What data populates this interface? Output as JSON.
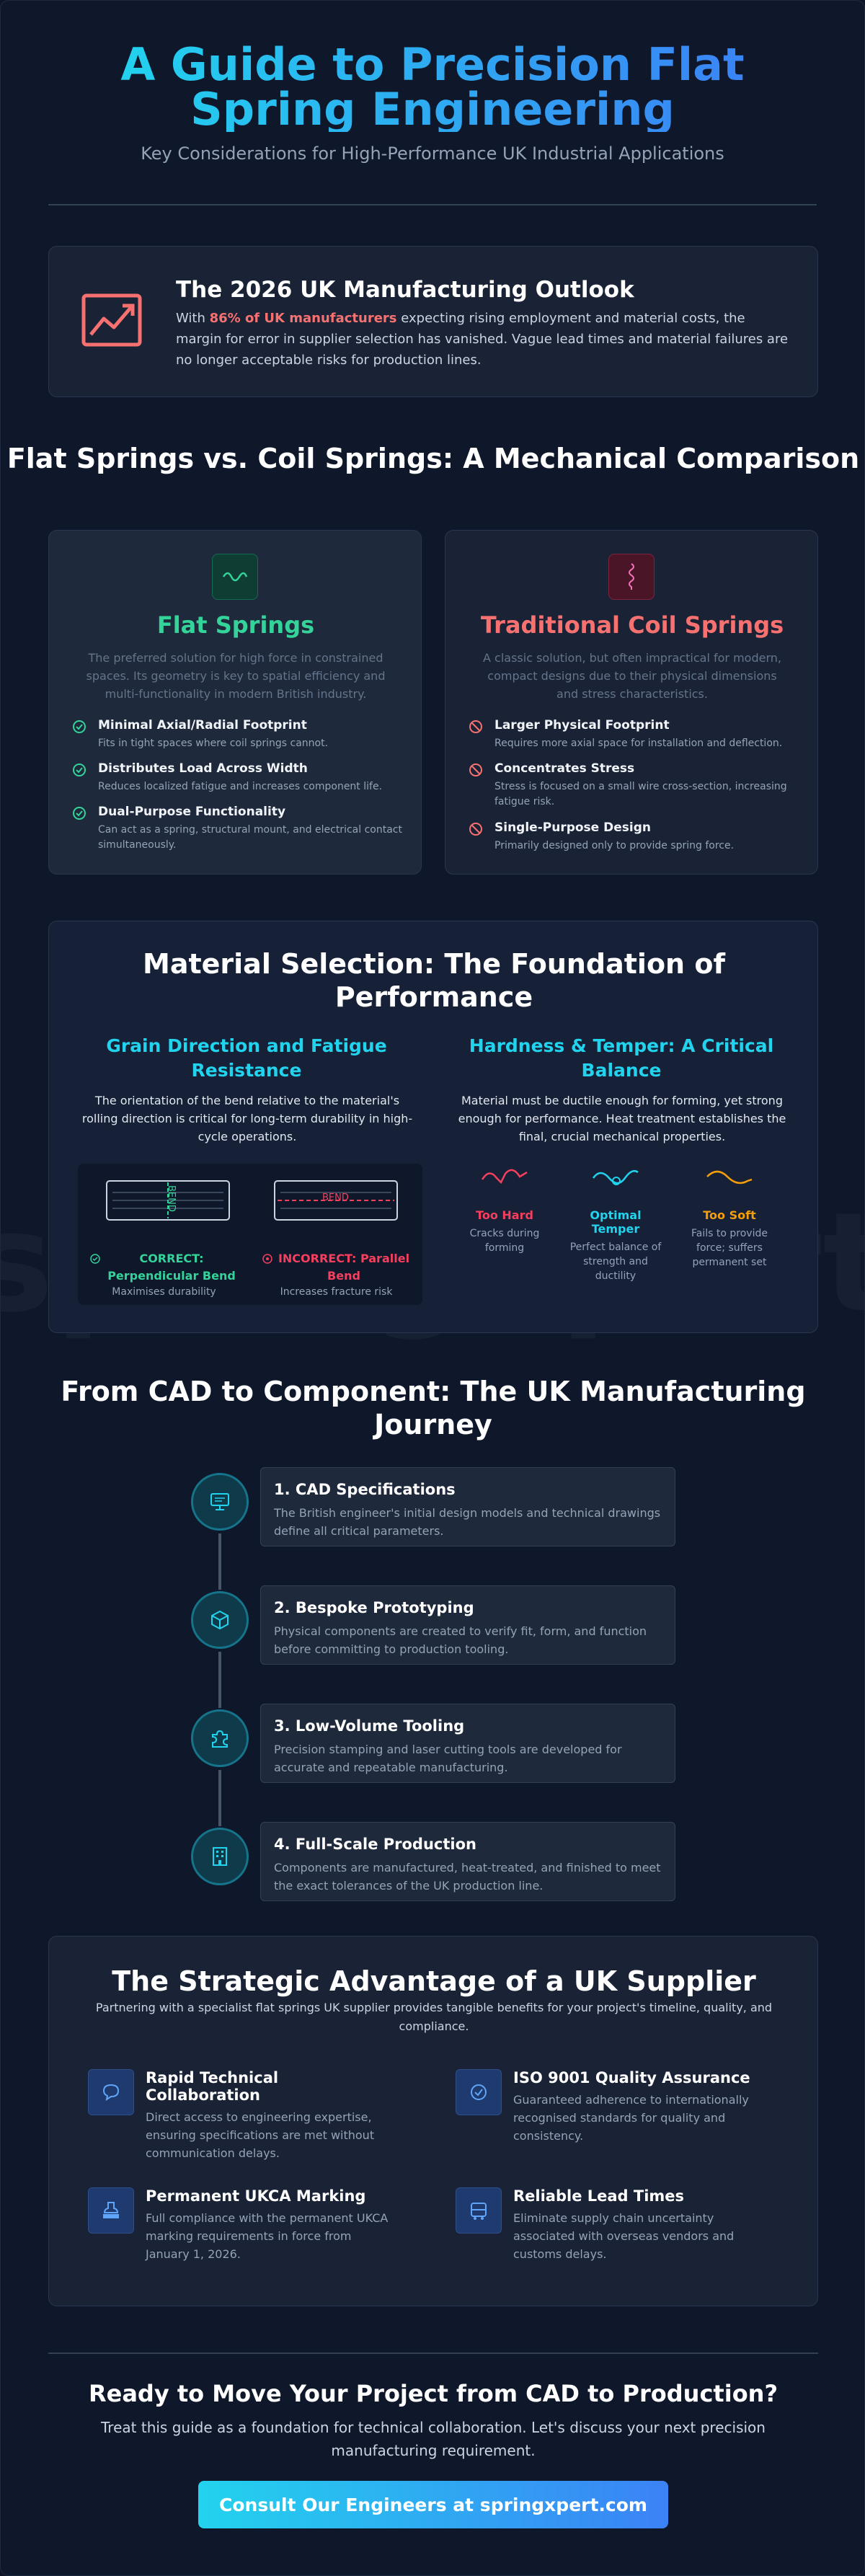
{
  "header": {
    "title": "A Guide to Precision Flat Spring Engineering",
    "subtitle": "Key Considerations for High-Performance UK Industrial Applications"
  },
  "watermark": "springxpert.com",
  "outlook": {
    "icon": "trend-chart-icon",
    "title": "The 2026 UK Manufacturing Outlook",
    "text_before": "With ",
    "highlight": "86% of UK manufacturers",
    "text_after": " expecting rising employment and material costs, the margin for error in supplier selection has vanished. Vague lead times and material failures are no longer acceptable risks for production lines."
  },
  "comparison": {
    "title": "Flat Springs vs. Coil Springs: A Mechanical Comparison",
    "flat": {
      "icon": "wave-icon",
      "title": "Flat Springs",
      "description": "The preferred solution for high force in constrained spaces. Its geometry is key to spatial efficiency and multi-functionality in modern British industry.",
      "features": [
        {
          "title": "Minimal Axial/Radial Footprint",
          "text": "Fits in tight spaces where coil springs cannot."
        },
        {
          "title": "Distributes Load Across Width",
          "text": "Reduces localized fatigue and increases component life."
        },
        {
          "title": "Dual-Purpose Functionality",
          "text": "Can act as a spring, structural mount, and electrical contact simultaneously."
        }
      ]
    },
    "coil": {
      "icon": "coil-icon",
      "title": "Traditional Coil Springs",
      "description": "A classic solution, but often impractical for modern, compact designs due to their physical dimensions and stress characteristics.",
      "features": [
        {
          "title": "Larger Physical Footprint",
          "text": "Requires more axial space for installation and deflection."
        },
        {
          "title": "Concentrates Stress",
          "text": "Stress is focused on a small wire cross-section, increasing fatigue risk."
        },
        {
          "title": "Single-Purpose Design",
          "text": "Primarily designed only to provide spring force."
        }
      ]
    }
  },
  "materials": {
    "title": "Material Selection: The Foundation of Performance",
    "grain": {
      "title": "Grain Direction and Fatigue Resistance",
      "text": "The orientation of the bend relative to the material's rolling direction is critical for long-term durability in high-cycle operations.",
      "correct": {
        "label": "CORRECT: Perpendicular Bend",
        "sub": "Maximises durability",
        "bend": "BEND"
      },
      "incorrect": {
        "label": "INCORRECT: Parallel Bend",
        "sub": "Increases fracture risk",
        "bend": "BEND"
      }
    },
    "hardness": {
      "title": "Hardness & Temper: A Critical Balance",
      "text": "Material must be ductile enough for forming, yet strong enough for performance. Heat treatment establishes the final, crucial mechanical properties.",
      "states": [
        {
          "label": "Too Hard",
          "text": "Cracks during forming",
          "color": "#f43f5e"
        },
        {
          "label": "Optimal Temper",
          "text": "Perfect balance of strength and ductility",
          "color": "#22d3ee"
        },
        {
          "label": "Too Soft",
          "text": "Fails to provide force; suffers permanent set",
          "color": "#f59e0b"
        }
      ]
    }
  },
  "journey": {
    "title": "From CAD to Component: The UK Manufacturing Journey",
    "steps": [
      {
        "icon": "monitor-icon",
        "title": "1. CAD Specifications",
        "text": "The British engineer's initial design models and technical drawings define all critical parameters."
      },
      {
        "icon": "cube-icon",
        "title": "2. Bespoke Prototyping",
        "text": "Physical components are created to verify fit, form, and function before committing to production tooling."
      },
      {
        "icon": "puzzle-icon",
        "title": "3. Low-Volume Tooling",
        "text": "Precision stamping and laser cutting tools are developed for accurate and repeatable manufacturing."
      },
      {
        "icon": "factory-icon",
        "title": "4. Full-Scale Production",
        "text": "Components are manufactured, heat-treated, and finished to meet the exact tolerances of the UK production line."
      }
    ]
  },
  "advantage": {
    "title": "The Strategic Advantage of a UK Supplier",
    "lead": "Partnering with a specialist flat springs UK supplier provides tangible benefits for your project's timeline, quality, and compliance.",
    "items": [
      {
        "icon": "chat-icon",
        "title": "Rapid Technical Collaboration",
        "text": "Direct access to engineering expertise, ensuring specifications are met without communication delays."
      },
      {
        "icon": "check-badge-icon",
        "title": "ISO 9001 Quality Assurance",
        "text": "Guaranteed adherence to internationally recognised standards for quality and consistency."
      },
      {
        "icon": "stamp-icon",
        "title": "Permanent UKCA Marking",
        "text": "Full compliance with the permanent UKCA marking requirements in force from January 1, 2026."
      },
      {
        "icon": "truck-icon",
        "title": "Reliable Lead Times",
        "text": "Eliminate supply chain uncertainty associated with overseas vendors and customs delays."
      }
    ]
  },
  "cta": {
    "title": "Ready to Move Your Project from CAD to Production?",
    "text": "Treat this guide as a foundation for technical collaboration. Let's discuss your next precision manufacturing requirement.",
    "button": "Consult Our Engineers at springxpert.com"
  },
  "colors": {
    "accent_cyan": "#22d3ee",
    "accent_blue": "#3b82f6",
    "flat_green": "#34d399",
    "coil_red": "#f87171"
  }
}
